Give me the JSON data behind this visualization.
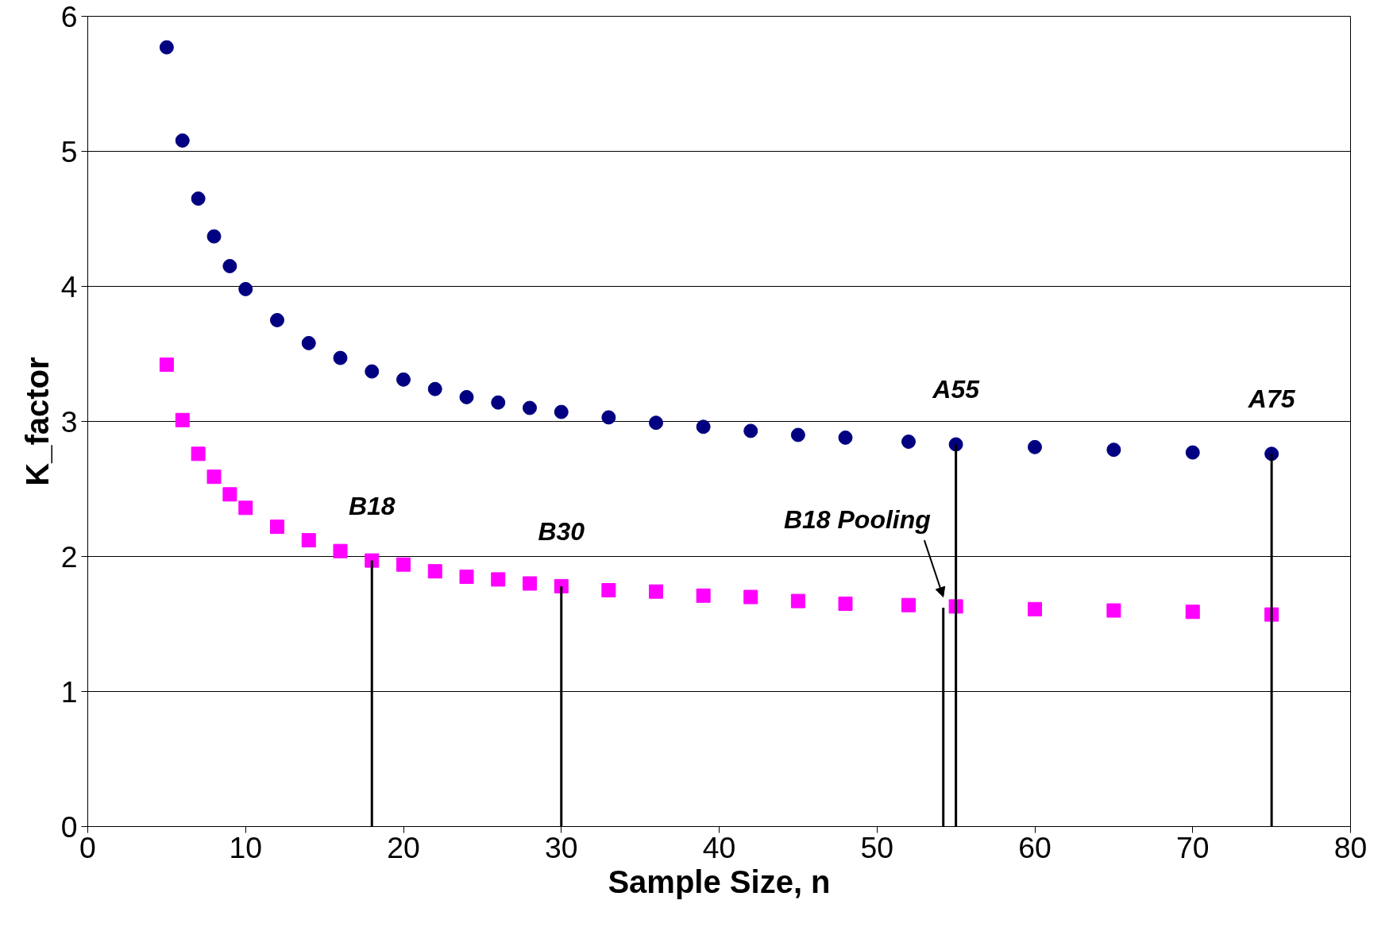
{
  "chart_data": {
    "type": "scatter",
    "xlabel": "Sample Size, n",
    "ylabel": "K_factor",
    "xlim": [
      0,
      80
    ],
    "xticks": [
      0,
      10,
      20,
      30,
      40,
      50,
      60,
      70,
      80
    ],
    "ylim": [
      0,
      6
    ],
    "yticks": [
      0,
      1,
      2,
      3,
      4,
      5,
      6
    ],
    "grid": "y",
    "series": [
      {
        "color": "#000080",
        "marker": "circle",
        "x": [
          5,
          6,
          7,
          8,
          9,
          10,
          12,
          14,
          16,
          18,
          20,
          22,
          24,
          26,
          28,
          30,
          33,
          36,
          39,
          42,
          45,
          48,
          52,
          55,
          60,
          65,
          70,
          75
        ],
        "values": [
          5.77,
          5.08,
          4.65,
          4.37,
          4.15,
          3.98,
          3.75,
          3.58,
          3.47,
          3.37,
          3.31,
          3.24,
          3.18,
          3.14,
          3.1,
          3.07,
          3.03,
          2.99,
          2.96,
          2.93,
          2.9,
          2.88,
          2.85,
          2.83,
          2.81,
          2.79,
          2.77,
          2.76
        ]
      },
      {
        "color": "#ff00ff",
        "marker": "square",
        "x": [
          5,
          6,
          7,
          8,
          9,
          10,
          12,
          14,
          16,
          18,
          20,
          22,
          24,
          26,
          28,
          30,
          33,
          36,
          39,
          42,
          45,
          48,
          52,
          55,
          60,
          65,
          70,
          75
        ],
        "values": [
          3.42,
          3.01,
          2.76,
          2.59,
          2.46,
          2.36,
          2.22,
          2.12,
          2.04,
          1.97,
          1.94,
          1.89,
          1.85,
          1.83,
          1.8,
          1.78,
          1.75,
          1.74,
          1.71,
          1.7,
          1.67,
          1.65,
          1.64,
          1.63,
          1.61,
          1.6,
          1.59,
          1.57
        ]
      },
      {
        "type": "line",
        "color": "#000000",
        "x": [
          18,
          18
        ],
        "values": [
          0,
          1.97
        ]
      },
      {
        "type": "line",
        "color": "#000000",
        "x": [
          30,
          30
        ],
        "values": [
          0,
          1.78
        ]
      },
      {
        "type": "line",
        "color": "#000000",
        "x": [
          54.2,
          54.2
        ],
        "values": [
          0,
          1.62
        ]
      },
      {
        "type": "line",
        "color": "#000000",
        "x": [
          55,
          55
        ],
        "values": [
          0,
          2.83
        ]
      },
      {
        "type": "line",
        "color": "#000000",
        "x": [
          75,
          75
        ],
        "values": [
          0,
          2.76
        ]
      }
    ],
    "annotations": [
      {
        "text": "B18",
        "x": 18,
        "y": 1.97
      },
      {
        "text": "B30",
        "x": 30,
        "y": 1.78
      },
      {
        "text": "B18 Pooling",
        "x": 54.2,
        "y": 1.62
      },
      {
        "text": "A55",
        "x": 55,
        "y": 2.83
      },
      {
        "text": "A75",
        "x": 75,
        "y": 2.76
      }
    ]
  }
}
